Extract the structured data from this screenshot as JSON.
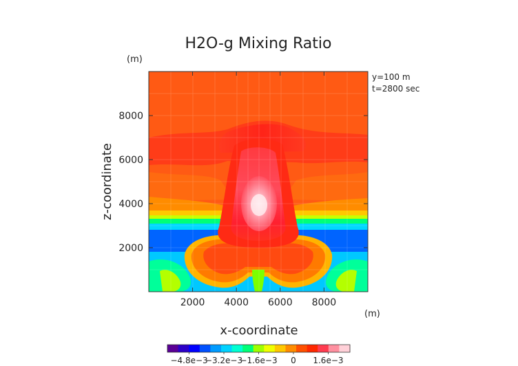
{
  "chart_data": {
    "type": "heatmap",
    "title": "H2O-g Mixing Ratio",
    "xlabel": "x-coordinate",
    "ylabel": "z-coordinate",
    "x_unit": "(m)",
    "y_unit": "(m)",
    "annotations": [
      "y=100 m",
      "t=2800 sec"
    ],
    "xlim": [
      0,
      10000
    ],
    "ylim": [
      0,
      10000
    ],
    "x_ticks": [
      2000,
      4000,
      6000,
      8000
    ],
    "y_ticks": [
      2000,
      4000,
      6000,
      8000
    ],
    "x_tick_labels": [
      "2000",
      "4000",
      "6000",
      "8000"
    ],
    "y_tick_labels": [
      "2000",
      "4000",
      "6000",
      "8000"
    ],
    "colorbar": {
      "tick_labels": [
        "−4.8e−3",
        "−3.2e−3",
        "−1.6e−3",
        "0",
        "1.6e−3"
      ],
      "tick_values": [
        -0.0048,
        -0.0032,
        -0.0016,
        0,
        0.0016
      ],
      "range": [
        -0.0058,
        0.0026
      ],
      "colors": [
        "#5a0096",
        "#2c00c8",
        "#0000ff",
        "#0050ff",
        "#009bff",
        "#00d2ff",
        "#00ffd2",
        "#00ff78",
        "#a0ff00",
        "#f0ff00",
        "#ffc800",
        "#ff8c00",
        "#ff5000",
        "#ff2800",
        "#ff3c50",
        "#ff90a0",
        "#ffd0d8"
      ]
    }
  }
}
